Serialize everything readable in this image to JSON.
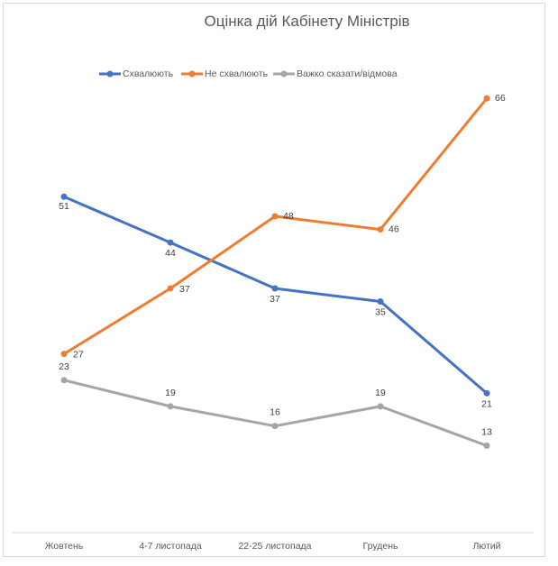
{
  "chart_data": {
    "type": "line",
    "title": "Оцінка дій Кабінету Міністрів",
    "categories": [
      "Жовтень",
      "4-7 листопада",
      "22-25 листопада",
      "Грудень",
      "Лютий"
    ],
    "series": [
      {
        "name": "Схвалюють",
        "color": "#4472c4",
        "values": [
          51,
          44,
          37,
          35,
          21
        ]
      },
      {
        "name": "Не схвалюють",
        "color": "#ed7d31",
        "values": [
          27,
          37,
          48,
          46,
          66
        ]
      },
      {
        "name": "Важко сказати/відмова",
        "color": "#a5a5a5",
        "values": [
          23,
          19,
          16,
          19,
          13
        ]
      }
    ],
    "ylim": [
      0,
      70
    ],
    "grid": false,
    "legend": "top",
    "data_labels": true
  }
}
